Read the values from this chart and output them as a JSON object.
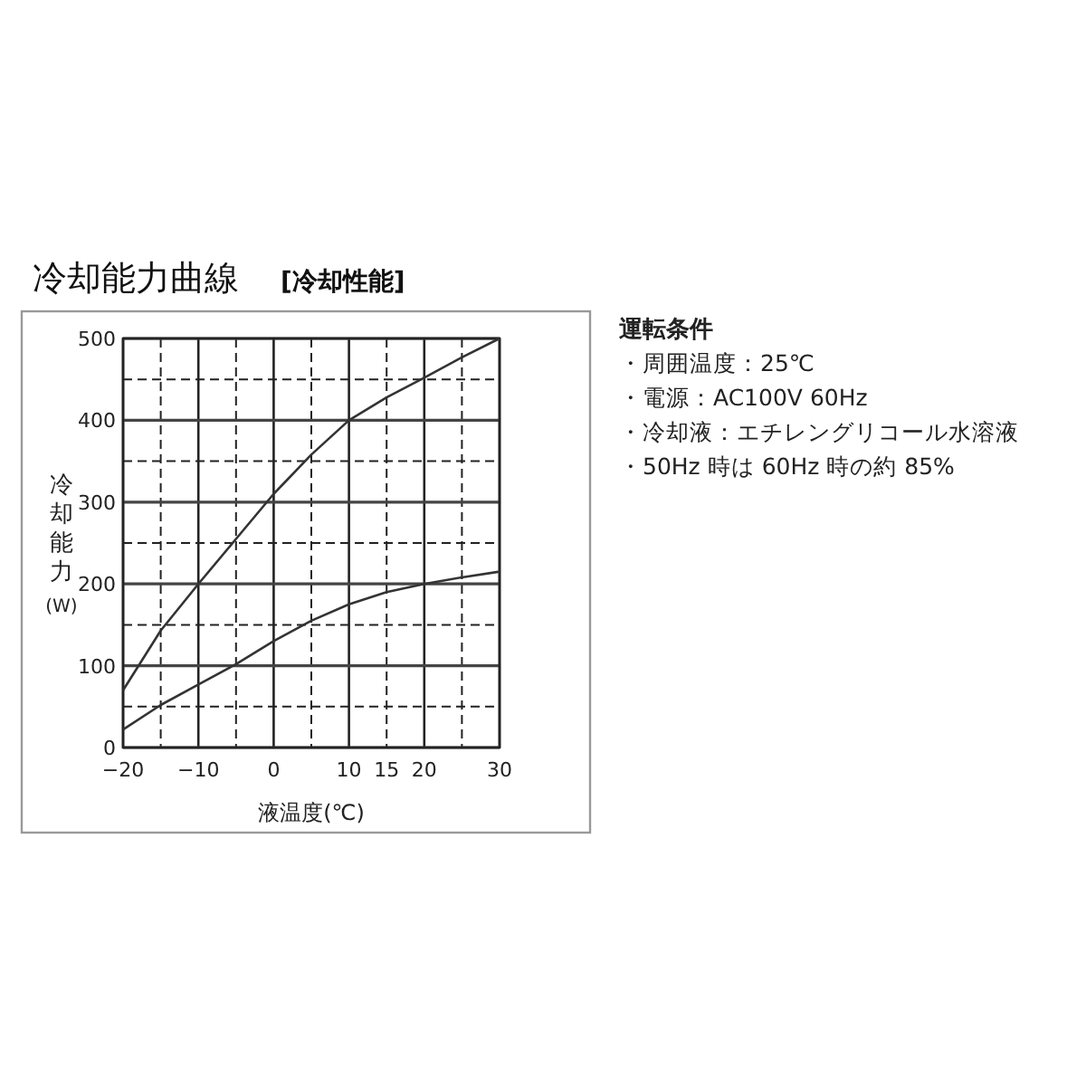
{
  "chart_data": {
    "type": "line",
    "title": "冷却能力曲線",
    "subtitle": "[冷却性能]",
    "xlabel": "液温度(℃)",
    "ylabel": "冷却能力\n(W)",
    "x": [
      -20,
      -15,
      -10,
      -5,
      0,
      5,
      10,
      15,
      20,
      25,
      30
    ],
    "series": [
      {
        "color": "#333333",
        "values": [
          70,
          143,
          200,
          255,
          310,
          358,
          400,
          428,
          452,
          477,
          500
        ]
      },
      {
        "color": "#333333",
        "values": [
          22,
          52,
          77,
          102,
          130,
          155,
          175,
          190,
          200,
          208,
          215
        ]
      }
    ],
    "xlim": [
      -20,
      30
    ],
    "ylim": [
      0,
      500
    ],
    "xticks": [
      -20,
      {
        "value": -15,
        "label": null
      },
      -10,
      {
        "value": -5,
        "label": null
      },
      0,
      {
        "value": 5,
        "label": null
      },
      10,
      15,
      20,
      {
        "value": 25,
        "label": null
      },
      30
    ],
    "yticks": [
      0,
      {
        "value": 50,
        "label": null
      },
      100,
      {
        "value": 150,
        "label": null
      },
      200,
      {
        "value": 250,
        "label": null
      },
      300,
      {
        "value": 350,
        "label": null
      },
      400,
      {
        "value": 450,
        "label": null
      },
      500
    ],
    "grid": true,
    "annotations": [
      "運転条件",
      "・周囲温度：25℃",
      "・電源：AC100V 60Hz",
      "・冷却液：エチレングリコール水溶液",
      "・50Hz 時は 60Hz 時の約 85%"
    ]
  }
}
